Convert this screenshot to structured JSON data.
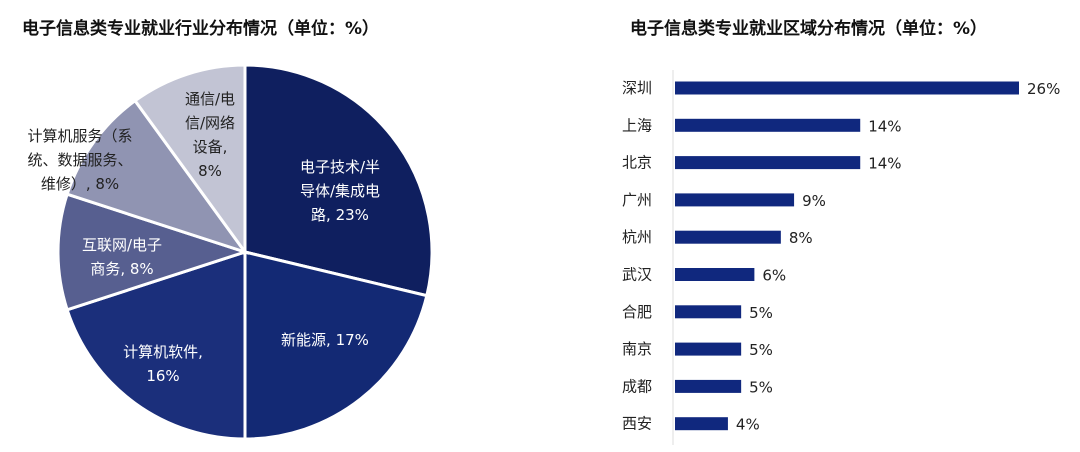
{
  "chart_data": [
    {
      "type": "pie",
      "title": "电子信息类专业就业行业分布情况（单位：%）",
      "start": "top, clockwise",
      "slices": [
        {
          "label": [
            "电子技术/半",
            "导体/集成电",
            "路, 23%"
          ],
          "name": "电子技术/半导体/集成电路",
          "value": 23,
          "color": "#0f1f5f",
          "text_color": "#ffffff"
        },
        {
          "label": [
            "新能源, 17%"
          ],
          "name": "新能源",
          "value": 17,
          "color": "#132974",
          "text_color": "#ffffff"
        },
        {
          "label": [
            "计算机软件,",
            "16%"
          ],
          "name": "计算机软件",
          "value": 16,
          "color": "#1b2f7b",
          "text_color": "#ffffff"
        },
        {
          "label": [
            "互联网/电子",
            "商务, 8%"
          ],
          "name": "互联网/电子商务",
          "value": 8,
          "color": "#575f90",
          "text_color": "#ffffff"
        },
        {
          "label": [
            "计算机服务（系",
            "统、数据服务、",
            "维修）, 8%"
          ],
          "name": "计算机服务（系统、数据服务、维修）",
          "value": 8,
          "color": "#9094b2",
          "text_color": "#222222"
        },
        {
          "label": [
            "通信/电",
            "信/网络",
            "设备,",
            "8%"
          ],
          "name": "通信/电信/网络设备",
          "value": 8,
          "color": "#c2c4d4",
          "text_color": "#222222"
        }
      ]
    },
    {
      "type": "bar",
      "orientation": "horizontal",
      "title": "电子信息类专业就业区域分布情况（单位：%）",
      "categories": [
        "深圳",
        "上海",
        "北京",
        "广州",
        "杭州",
        "武汉",
        "合肥",
        "南京",
        "成都",
        "西安"
      ],
      "values": [
        26,
        14,
        14,
        9,
        8,
        6,
        5,
        5,
        5,
        4
      ],
      "data_labels": [
        "26%",
        "14%",
        "14%",
        "9%",
        "8%",
        "6%",
        "5%",
        "5%",
        "5%",
        "4%"
      ],
      "color": "#10287e",
      "xlim": [
        0,
        26
      ]
    }
  ]
}
